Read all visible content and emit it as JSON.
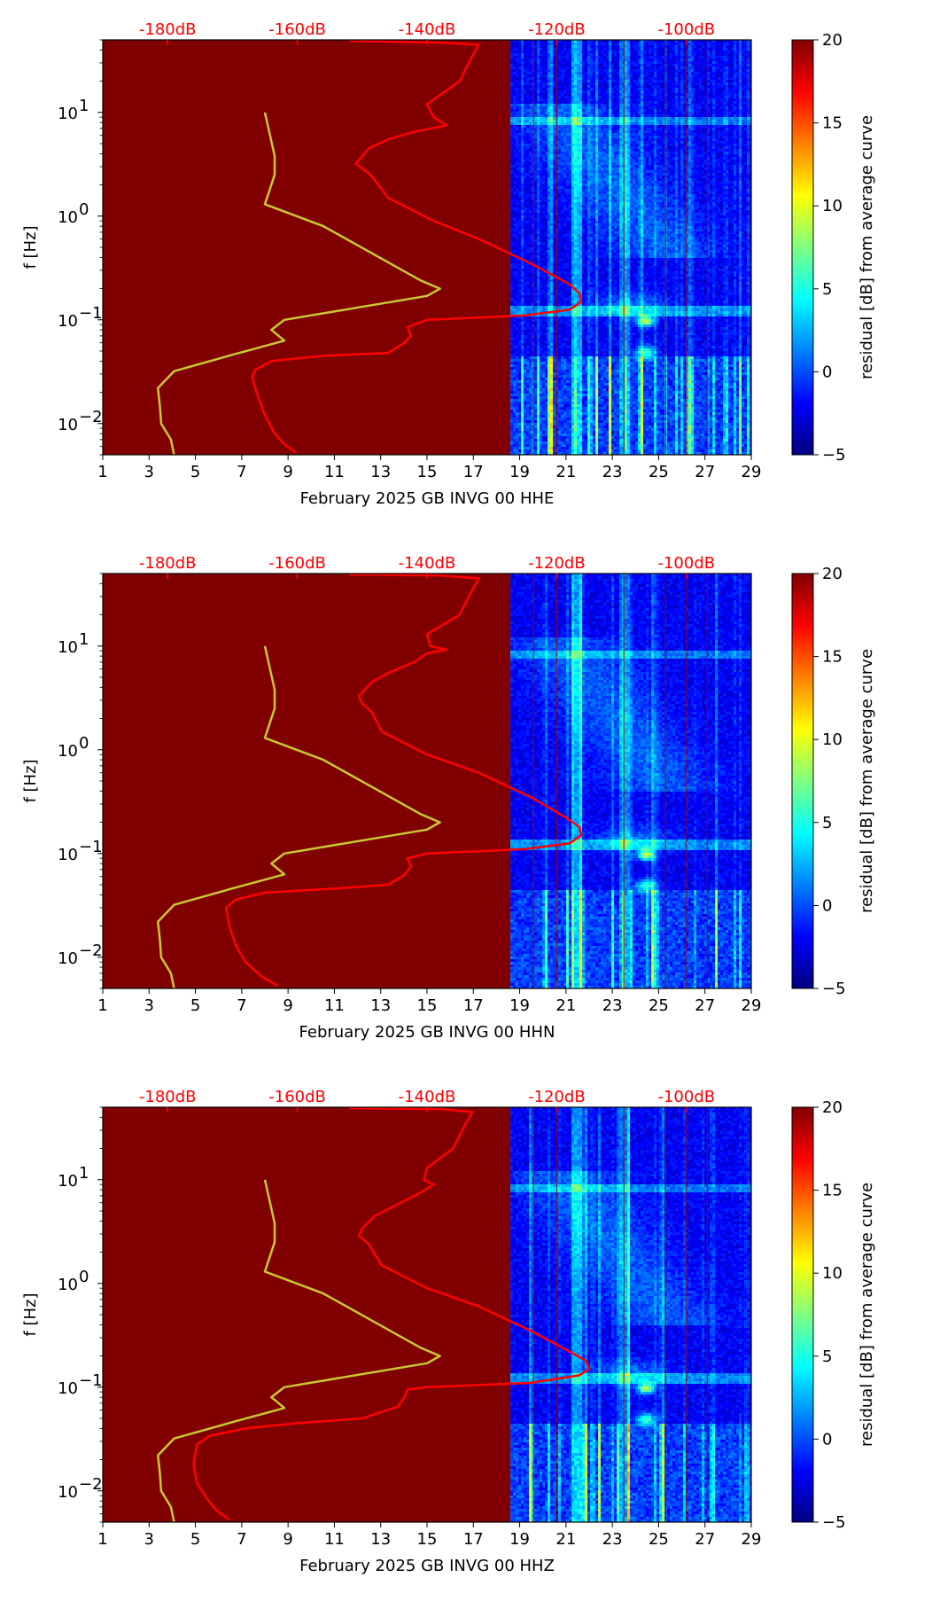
{
  "chart_data": [
    {
      "type": "heatmap",
      "title": "",
      "xlabel": "February 2025 GB INVG 00 HHE",
      "ylabel": "f [Hz]",
      "x_ticks": [
        "1",
        "3",
        "5",
        "7",
        "9",
        "11",
        "13",
        "15",
        "17",
        "19",
        "21",
        "23",
        "25",
        "27",
        "29"
      ],
      "x_range": [
        1,
        29
      ],
      "y_range_hz": [
        0.005,
        50
      ],
      "y_ticks": [
        {
          "value": 0.01,
          "base": "10",
          "exp": "−2"
        },
        {
          "value": 0.1,
          "base": "10",
          "exp": "−1"
        },
        {
          "value": 1,
          "base": "10",
          "exp": "0"
        },
        {
          "value": 10,
          "base": "10",
          "exp": "1"
        }
      ],
      "top_axis_ticks": [
        "-180dB",
        "-160dB",
        "-140dB",
        "-120dB",
        "-100dB"
      ],
      "top_axis_range_db": [
        -190,
        -90
      ],
      "data_start_day": 18.6,
      "colorbar": {
        "label": "residual [dB] from average curve",
        "min": -5,
        "max": 20,
        "ticks": [
          "−5",
          "0",
          "5",
          "10",
          "15",
          "20"
        ]
      },
      "series": [
        {
          "name": "average PSD",
          "color": "#ff0000",
          "points": [
            [
              -160.3,
              0.0053
            ],
            [
              -162.0,
              0.0063
            ],
            [
              -163.5,
              0.008
            ],
            [
              -165.0,
              0.012
            ],
            [
              -166.3,
              0.02
            ],
            [
              -167.0,
              0.028
            ],
            [
              -166.5,
              0.033
            ],
            [
              -164.0,
              0.04
            ],
            [
              -156.0,
              0.045
            ],
            [
              -146.0,
              0.048
            ],
            [
              -143.5,
              0.06
            ],
            [
              -142.5,
              0.07
            ],
            [
              -143.0,
              0.085
            ],
            [
              -140.0,
              0.1
            ],
            [
              -125.0,
              0.11
            ],
            [
              -118.0,
              0.125
            ],
            [
              -116.2,
              0.15
            ],
            [
              -116.5,
              0.18
            ],
            [
              -118.0,
              0.22
            ],
            [
              -124.0,
              0.35
            ],
            [
              -132.0,
              0.6
            ],
            [
              -139.0,
              0.9
            ],
            [
              -146.0,
              1.5
            ],
            [
              -148.0,
              2.2
            ],
            [
              -149.0,
              2.6
            ],
            [
              -151.0,
              3.2
            ],
            [
              -149.0,
              4.5
            ],
            [
              -146.0,
              5.5
            ],
            [
              -142.0,
              6.5
            ],
            [
              -137.0,
              7.5
            ],
            [
              -139.0,
              9.0
            ],
            [
              -140.0,
              12
            ],
            [
              -135.0,
              20
            ],
            [
              -133.0,
              35
            ],
            [
              -132.0,
              45
            ],
            [
              -138.0,
              47
            ],
            [
              -152.0,
              49
            ]
          ]
        },
        {
          "name": "noise model",
          "color": "#c8c832",
          "points": [
            [
              -179.0,
              0.005
            ],
            [
              -179.5,
              0.007
            ],
            [
              -181.0,
              0.01
            ],
            [
              -181.2,
              0.015
            ],
            [
              -181.5,
              0.022
            ],
            [
              -179.0,
              0.032
            ],
            [
              -170.0,
              0.046
            ],
            [
              -162.0,
              0.063
            ],
            [
              -164.0,
              0.08
            ],
            [
              -162.0,
              0.1
            ],
            [
              -140.0,
              0.17
            ],
            [
              -138.0,
              0.2
            ],
            [
              -141.0,
              0.24
            ],
            [
              -156.0,
              0.8
            ],
            [
              -165.0,
              1.3
            ],
            [
              -163.5,
              2.5
            ],
            [
              -163.5,
              3.8
            ],
            [
              -165.0,
              10
            ]
          ]
        }
      ]
    },
    {
      "type": "heatmap",
      "title": "",
      "xlabel": "February 2025 GB INVG 00 HHN",
      "ylabel": "f [Hz]",
      "x_ticks": [
        "1",
        "3",
        "5",
        "7",
        "9",
        "11",
        "13",
        "15",
        "17",
        "19",
        "21",
        "23",
        "25",
        "27",
        "29"
      ],
      "x_range": [
        1,
        29
      ],
      "y_range_hz": [
        0.005,
        50
      ],
      "y_ticks": [
        {
          "value": 0.01,
          "base": "10",
          "exp": "−2"
        },
        {
          "value": 0.1,
          "base": "10",
          "exp": "−1"
        },
        {
          "value": 1,
          "base": "10",
          "exp": "0"
        },
        {
          "value": 10,
          "base": "10",
          "exp": "1"
        }
      ],
      "top_axis_ticks": [
        "-180dB",
        "-160dB",
        "-140dB",
        "-120dB",
        "-100dB"
      ],
      "top_axis_range_db": [
        -190,
        -90
      ],
      "data_start_day": 18.6,
      "colorbar": {
        "label": "residual [dB] from average curve",
        "min": -5,
        "max": 20,
        "ticks": [
          "−5",
          "0",
          "5",
          "10",
          "15",
          "20"
        ]
      },
      "series": [
        {
          "name": "average PSD",
          "color": "#ff0000",
          "points": [
            [
              -163.0,
              0.0053
            ],
            [
              -165.5,
              0.0065
            ],
            [
              -168.0,
              0.009
            ],
            [
              -169.5,
              0.013
            ],
            [
              -170.5,
              0.02
            ],
            [
              -171.0,
              0.03
            ],
            [
              -169.5,
              0.036
            ],
            [
              -165.0,
              0.042
            ],
            [
              -154.0,
              0.046
            ],
            [
              -146.0,
              0.05
            ],
            [
              -143.5,
              0.062
            ],
            [
              -142.5,
              0.075
            ],
            [
              -143.0,
              0.09
            ],
            [
              -140.0,
              0.1
            ],
            [
              -125.0,
              0.11
            ],
            [
              -118.0,
              0.125
            ],
            [
              -116.2,
              0.15
            ],
            [
              -116.5,
              0.18
            ],
            [
              -118.5,
              0.22
            ],
            [
              -124.0,
              0.35
            ],
            [
              -132.0,
              0.6
            ],
            [
              -140.0,
              0.9
            ],
            [
              -147.0,
              1.5
            ],
            [
              -148.5,
              2.3
            ],
            [
              -150.0,
              2.8
            ],
            [
              -150.5,
              3.3
            ],
            [
              -148.5,
              4.5
            ],
            [
              -146.0,
              5.5
            ],
            [
              -142.0,
              7.0
            ],
            [
              -140.0,
              8.5
            ],
            [
              -137.0,
              9.2
            ],
            [
              -139.5,
              10
            ],
            [
              -140.0,
              13
            ],
            [
              -135.0,
              20
            ],
            [
              -133.0,
              35
            ],
            [
              -132.0,
              45
            ],
            [
              -138.0,
              48
            ],
            [
              -152.0,
              49
            ]
          ]
        },
        {
          "name": "noise model",
          "color": "#c8c832",
          "points": [
            [
              -179.0,
              0.005
            ],
            [
              -179.5,
              0.007
            ],
            [
              -181.0,
              0.01
            ],
            [
              -181.2,
              0.015
            ],
            [
              -181.5,
              0.022
            ],
            [
              -179.0,
              0.032
            ],
            [
              -170.0,
              0.046
            ],
            [
              -162.0,
              0.063
            ],
            [
              -164.0,
              0.08
            ],
            [
              -162.0,
              0.1
            ],
            [
              -140.0,
              0.17
            ],
            [
              -138.0,
              0.2
            ],
            [
              -141.0,
              0.24
            ],
            [
              -156.0,
              0.8
            ],
            [
              -165.0,
              1.3
            ],
            [
              -163.5,
              2.5
            ],
            [
              -163.5,
              3.8
            ],
            [
              -165.0,
              10
            ]
          ]
        }
      ]
    },
    {
      "type": "heatmap",
      "title": "",
      "xlabel": "February 2025 GB INVG 00 HHZ",
      "ylabel": "f [Hz]",
      "x_ticks": [
        "1",
        "3",
        "5",
        "7",
        "9",
        "11",
        "13",
        "15",
        "17",
        "19",
        "21",
        "23",
        "25",
        "27",
        "29"
      ],
      "x_range": [
        1,
        29
      ],
      "y_range_hz": [
        0.005,
        50
      ],
      "y_ticks": [
        {
          "value": 0.01,
          "base": "10",
          "exp": "−2"
        },
        {
          "value": 0.1,
          "base": "10",
          "exp": "−1"
        },
        {
          "value": 1,
          "base": "10",
          "exp": "0"
        },
        {
          "value": 10,
          "base": "10",
          "exp": "1"
        }
      ],
      "top_axis_ticks": [
        "-180dB",
        "-160dB",
        "-140dB",
        "-120dB",
        "-100dB"
      ],
      "top_axis_range_db": [
        -190,
        -90
      ],
      "data_start_day": 18.6,
      "colorbar": {
        "label": "residual [dB] from average curve",
        "min": -5,
        "max": 20,
        "ticks": [
          "−5",
          "0",
          "5",
          "10",
          "15",
          "20"
        ]
      },
      "series": [
        {
          "name": "average PSD",
          "color": "#ff0000",
          "points": [
            [
              -170.5,
              0.0053
            ],
            [
              -172.5,
              0.0065
            ],
            [
              -174.0,
              0.0085
            ],
            [
              -175.5,
              0.012
            ],
            [
              -176.0,
              0.018
            ],
            [
              -175.5,
              0.028
            ],
            [
              -173.5,
              0.034
            ],
            [
              -168.0,
              0.04
            ],
            [
              -160.0,
              0.045
            ],
            [
              -150.0,
              0.05
            ],
            [
              -144.5,
              0.065
            ],
            [
              -143.5,
              0.08
            ],
            [
              -143.0,
              0.095
            ],
            [
              -140.0,
              0.1
            ],
            [
              -124.0,
              0.11
            ],
            [
              -116.5,
              0.13
            ],
            [
              -115.0,
              0.15
            ],
            [
              -115.5,
              0.18
            ],
            [
              -118.0,
              0.22
            ],
            [
              -124.0,
              0.35
            ],
            [
              -132.0,
              0.6
            ],
            [
              -140.0,
              0.9
            ],
            [
              -147.0,
              1.5
            ],
            [
              -149.0,
              2.4
            ],
            [
              -150.5,
              2.9
            ],
            [
              -150.0,
              3.4
            ],
            [
              -148.0,
              4.5
            ],
            [
              -145.0,
              5.6
            ],
            [
              -141.0,
              7.5
            ],
            [
              -139.0,
              9.0
            ],
            [
              -140.5,
              10
            ],
            [
              -140.0,
              13
            ],
            [
              -136.0,
              20
            ],
            [
              -134.0,
              35
            ],
            [
              -133.0,
              45
            ],
            [
              -138.0,
              48
            ],
            [
              -152.0,
              49
            ]
          ]
        },
        {
          "name": "noise model",
          "color": "#c8c832",
          "points": [
            [
              -179.0,
              0.005
            ],
            [
              -179.5,
              0.007
            ],
            [
              -181.0,
              0.01
            ],
            [
              -181.2,
              0.015
            ],
            [
              -181.5,
              0.022
            ],
            [
              -179.0,
              0.032
            ],
            [
              -170.0,
              0.046
            ],
            [
              -162.0,
              0.063
            ],
            [
              -164.0,
              0.08
            ],
            [
              -162.0,
              0.1
            ],
            [
              -140.0,
              0.17
            ],
            [
              -138.0,
              0.2
            ],
            [
              -141.0,
              0.24
            ],
            [
              -156.0,
              0.8
            ],
            [
              -165.0,
              1.3
            ],
            [
              -163.5,
              2.5
            ],
            [
              -163.5,
              3.8
            ],
            [
              -165.0,
              10
            ]
          ]
        }
      ]
    }
  ]
}
